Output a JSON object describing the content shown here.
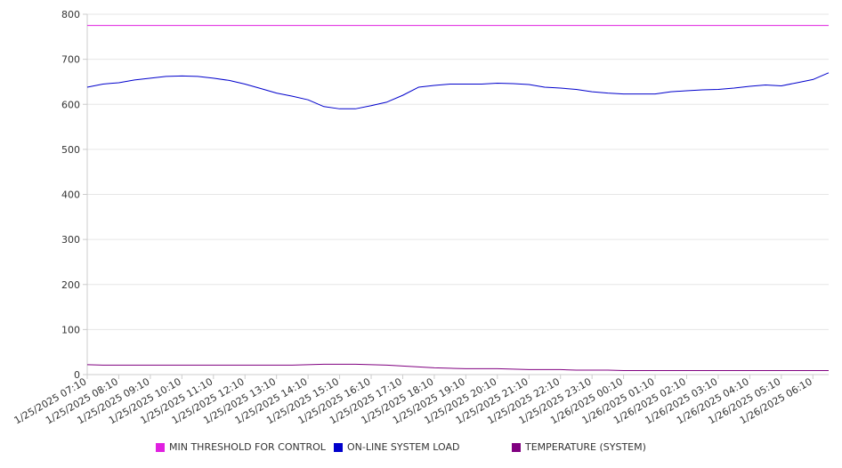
{
  "chart_data": {
    "type": "line",
    "title": "",
    "xlabel": "",
    "ylabel": "",
    "ylim": [
      0,
      800
    ],
    "yticks": [
      0,
      100,
      200,
      300,
      400,
      500,
      600,
      700,
      800
    ],
    "grid": true,
    "legend_position": "bottom",
    "x_tick_labels": [
      "1/25/2025 07:10",
      "1/25/2025 08:10",
      "1/25/2025 09:10",
      "1/25/2025 10:10",
      "1/25/2025 11:10",
      "1/25/2025 12:10",
      "1/25/2025 13:10",
      "1/25/2025 14:10",
      "1/25/2025 15:10",
      "1/25/2025 16:10",
      "1/25/2025 17:10",
      "1/25/2025 18:10",
      "1/25/2025 19:10",
      "1/25/2025 20:10",
      "1/25/2025 21:10",
      "1/25/2025 22:10",
      "1/25/2025 23:10",
      "1/26/2025 00:10",
      "1/26/2025 01:10",
      "1/26/2025 02:10",
      "1/26/2025 03:10",
      "1/26/2025 04:10",
      "1/26/2025 05:10",
      "1/26/2025 06:10"
    ],
    "x": [
      "1/25/2025 07:10",
      "1/25/2025 07:40",
      "1/25/2025 08:10",
      "1/25/2025 08:40",
      "1/25/2025 09:10",
      "1/25/2025 09:40",
      "1/25/2025 10:10",
      "1/25/2025 10:40",
      "1/25/2025 11:10",
      "1/25/2025 11:40",
      "1/25/2025 12:10",
      "1/25/2025 12:40",
      "1/25/2025 13:10",
      "1/25/2025 13:40",
      "1/25/2025 14:10",
      "1/25/2025 14:40",
      "1/25/2025 15:10",
      "1/25/2025 15:40",
      "1/25/2025 16:10",
      "1/25/2025 16:40",
      "1/25/2025 17:10",
      "1/25/2025 17:40",
      "1/25/2025 18:10",
      "1/25/2025 18:40",
      "1/25/2025 19:10",
      "1/25/2025 19:40",
      "1/25/2025 20:10",
      "1/25/2025 20:40",
      "1/25/2025 21:10",
      "1/25/2025 21:40",
      "1/25/2025 22:10",
      "1/25/2025 22:40",
      "1/25/2025 23:10",
      "1/25/2025 23:40",
      "1/26/2025 00:10",
      "1/26/2025 00:40",
      "1/26/2025 01:10",
      "1/26/2025 01:40",
      "1/26/2025 02:10",
      "1/26/2025 02:40",
      "1/26/2025 03:10",
      "1/26/2025 03:40",
      "1/26/2025 04:10",
      "1/26/2025 04:40",
      "1/26/2025 05:10",
      "1/26/2025 05:40",
      "1/26/2025 06:10",
      "1/26/2025 06:40"
    ],
    "series": [
      {
        "name": "MIN THRESHOLD FOR CONTROL",
        "color": "#e020e0",
        "values": [
          775,
          775,
          775,
          775,
          775,
          775,
          775,
          775,
          775,
          775,
          775,
          775,
          775,
          775,
          775,
          775,
          775,
          775,
          775,
          775,
          775,
          775,
          775,
          775,
          775,
          775,
          775,
          775,
          775,
          775,
          775,
          775,
          775,
          775,
          775,
          775,
          775,
          775,
          775,
          775,
          775,
          775,
          775,
          775,
          775,
          775,
          775,
          775
        ]
      },
      {
        "name": "ON-LINE SYSTEM LOAD",
        "color": "#0000cc",
        "values": [
          638,
          645,
          648,
          654,
          658,
          662,
          663,
          662,
          658,
          653,
          645,
          635,
          625,
          618,
          610,
          595,
          590,
          590,
          597,
          605,
          620,
          638,
          642,
          645,
          645,
          645,
          647,
          646,
          644,
          638,
          636,
          633,
          628,
          625,
          623,
          623,
          623,
          628,
          630,
          632,
          633,
          636,
          640,
          643,
          641,
          648,
          655,
          670
        ]
      },
      {
        "name": "TEMPERATURE (SYSTEM)",
        "color": "#800080",
        "values": [
          22,
          21,
          21,
          21,
          21,
          21,
          21,
          21,
          21,
          21,
          21,
          21,
          21,
          21,
          22,
          23,
          23,
          23,
          22,
          21,
          19,
          17,
          15,
          14,
          13,
          13,
          13,
          12,
          11,
          11,
          11,
          10,
          10,
          10,
          9,
          9,
          9,
          9,
          9,
          9,
          9,
          9,
          9,
          9,
          9,
          9,
          9,
          9
        ]
      }
    ]
  }
}
